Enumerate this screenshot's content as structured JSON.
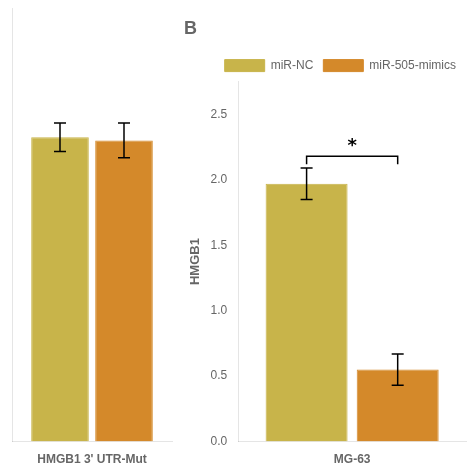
{
  "chart_data": [
    {
      "type": "bar",
      "categories": [
        "HMGB1 3' UTR-Mut"
      ],
      "series": [
        {
          "name": "miR-NC",
          "color": "#c8b44a",
          "values": [
            1.93
          ],
          "errors": [
            0.09
          ]
        },
        {
          "name": "miR-505-mimics",
          "color": "#d4892a",
          "values": [
            1.91
          ],
          "errors": [
            0.11
          ]
        }
      ],
      "ylim": [
        0,
        2.75
      ],
      "tick_labels": "x",
      "grid": false
    },
    {
      "type": "bar",
      "title": "B",
      "categories": [
        "MG-63"
      ],
      "y_label": "HMGB1",
      "series": [
        {
          "name": "miR-NC",
          "color": "#c8b44a",
          "values": [
            1.97
          ],
          "errors": [
            0.12
          ]
        },
        {
          "name": "miR-505-mimics",
          "color": "#d4892a",
          "values": [
            0.55
          ],
          "errors": [
            0.12
          ]
        }
      ],
      "ylim": [
        0,
        2.75
      ],
      "yticks": [
        {
          "value": 0.0,
          "label": "0.0"
        },
        {
          "value": 0.5,
          "label": "0.5"
        },
        {
          "value": 1.0,
          "label": "1.0"
        },
        {
          "value": 1.5,
          "label": "1.5"
        },
        {
          "value": 2.0,
          "label": "2.0"
        },
        {
          "value": 2.5,
          "label": "2.5"
        }
      ],
      "annotations": [
        {
          "text": "*",
          "y": 2.18
        }
      ],
      "legend": "upper right",
      "grid": false
    }
  ]
}
